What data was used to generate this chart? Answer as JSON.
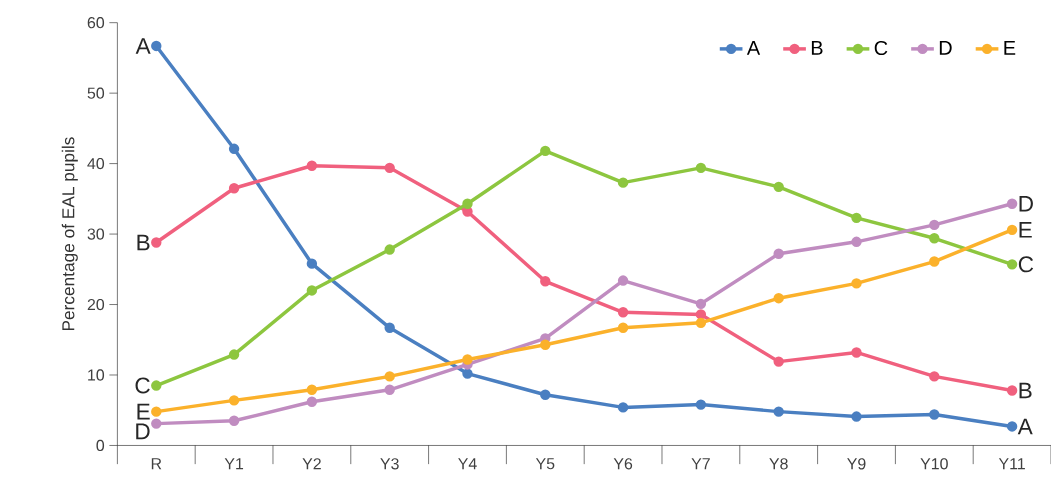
{
  "chart_data": {
    "type": "line",
    "ylabel": "Percentage of EAL pupils",
    "categories": [
      "R",
      "Y1",
      "Y2",
      "Y3",
      "Y4",
      "Y5",
      "Y6",
      "Y7",
      "Y8",
      "Y9",
      "Y10",
      "Y11"
    ],
    "series": [
      {
        "name": "A",
        "color": "#4a7fc1",
        "values": [
          56.7,
          42.1,
          25.8,
          16.7,
          10.2,
          7.2,
          5.4,
          5.8,
          4.8,
          4.1,
          4.4,
          2.7
        ]
      },
      {
        "name": "B",
        "color": "#f0607e",
        "values": [
          28.8,
          36.5,
          39.7,
          39.4,
          33.2,
          23.3,
          18.9,
          18.6,
          11.9,
          13.2,
          9.8,
          7.8
        ]
      },
      {
        "name": "C",
        "color": "#8dc63f",
        "values": [
          8.5,
          12.9,
          22.0,
          27.8,
          34.3,
          41.8,
          37.3,
          39.4,
          36.7,
          32.3,
          29.4,
          25.7
        ]
      },
      {
        "name": "D",
        "color": "#c08cc0",
        "values": [
          3.1,
          3.5,
          6.2,
          7.9,
          11.5,
          15.2,
          23.4,
          20.1,
          27.2,
          28.9,
          31.3,
          34.3
        ]
      },
      {
        "name": "E",
        "color": "#fbb12b",
        "values": [
          4.8,
          6.4,
          7.9,
          9.8,
          12.2,
          14.3,
          16.7,
          17.4,
          20.9,
          23.0,
          26.1,
          30.6
        ]
      }
    ],
    "ylim": [
      0,
      60
    ],
    "yticks": [
      0,
      10,
      20,
      30,
      40,
      50,
      60
    ],
    "grid": false,
    "legend": "top right",
    "marker": "circle",
    "line_style": "solid"
  }
}
